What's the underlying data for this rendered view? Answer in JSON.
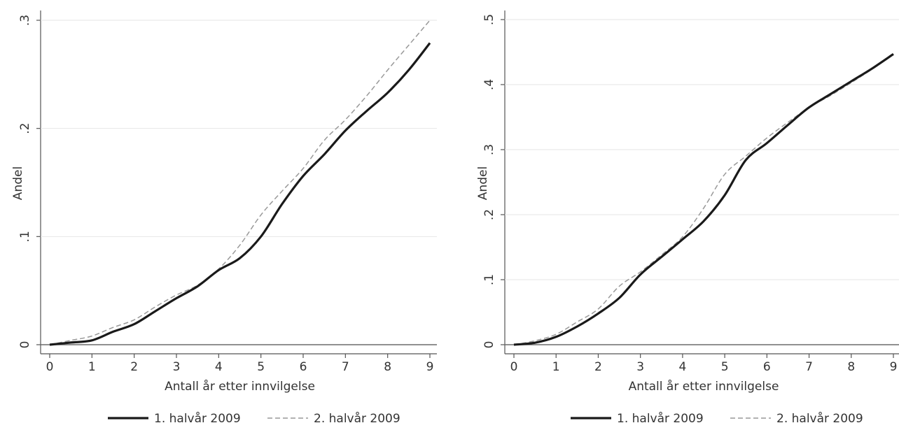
{
  "chart_data": [
    {
      "type": "line",
      "xlabel": "Antall år etter innvilgelse",
      "ylabel": "Andel",
      "xlim": [
        0,
        9
      ],
      "ylim": [
        0,
        0.3
      ],
      "xticks": [
        0,
        1,
        2,
        3,
        4,
        5,
        6,
        7,
        8,
        9
      ],
      "xtick_labels": [
        "0",
        "1",
        "2",
        "3",
        "4",
        "5",
        "6",
        "7",
        "8",
        "9"
      ],
      "yticks": [
        0,
        0.1,
        0.2,
        0.3
      ],
      "ytick_labels": [
        "0",
        ".1",
        ".2",
        ".3"
      ],
      "grid": "horizontal",
      "legend_position": "bottom",
      "x": [
        0,
        0.5,
        1,
        1.5,
        2,
        2.5,
        3,
        3.5,
        4,
        4.5,
        5,
        5.5,
        6,
        6.5,
        7,
        7.5,
        8,
        8.5,
        9
      ],
      "series": [
        {
          "name": "1. halvår 2009",
          "style": "solid",
          "color": "#1a1a1a",
          "values": [
            0,
            0.002,
            0.004,
            0.012,
            0.019,
            0.031,
            0.043,
            0.054,
            0.069,
            0.08,
            0.1,
            0.13,
            0.156,
            0.176,
            0.198,
            0.216,
            0.233,
            0.254,
            0.279
          ]
        },
        {
          "name": "2. halvår 2009",
          "style": "dashed",
          "color": "#999999",
          "values": [
            0,
            0.004,
            0.008,
            0.016,
            0.023,
            0.035,
            0.046,
            0.055,
            0.07,
            0.092,
            0.12,
            0.142,
            0.163,
            0.189,
            0.208,
            0.23,
            0.254,
            0.277,
            0.3
          ]
        }
      ]
    },
    {
      "type": "line",
      "xlabel": "Antall år etter innvilgelse",
      "ylabel": "Andel",
      "xlim": [
        0,
        9
      ],
      "ylim": [
        0,
        0.5
      ],
      "xticks": [
        0,
        1,
        2,
        3,
        4,
        5,
        6,
        7,
        8,
        9
      ],
      "xtick_labels": [
        "0",
        "1",
        "2",
        "3",
        "4",
        "5",
        "6",
        "7",
        "8",
        "9"
      ],
      "yticks": [
        0,
        0.1,
        0.2,
        0.3,
        0.4,
        0.5
      ],
      "ytick_labels": [
        "0",
        ".1",
        ".2",
        ".3",
        ".4",
        ".5"
      ],
      "grid": "horizontal",
      "legend_position": "bottom",
      "x": [
        0,
        0.5,
        1,
        1.5,
        2,
        2.5,
        3,
        3.5,
        4,
        4.5,
        5,
        5.5,
        6,
        6.5,
        7,
        7.5,
        8,
        8.5,
        9
      ],
      "series": [
        {
          "name": "1. halvår 2009",
          "style": "solid",
          "color": "#1a1a1a",
          "values": [
            0,
            0.003,
            0.012,
            0.028,
            0.048,
            0.072,
            0.108,
            0.135,
            0.162,
            0.19,
            0.23,
            0.284,
            0.31,
            0.338,
            0.365,
            0.385,
            0.405,
            0.425,
            0.447
          ]
        },
        {
          "name": "2. halvår 2009",
          "style": "dashed",
          "color": "#999999",
          "values": [
            0,
            0.006,
            0.016,
            0.035,
            0.055,
            0.09,
            0.112,
            0.138,
            0.166,
            0.21,
            0.262,
            0.29,
            0.318,
            0.342,
            0.365,
            0.383,
            0.403,
            0.424,
            0.446
          ]
        }
      ]
    }
  ]
}
